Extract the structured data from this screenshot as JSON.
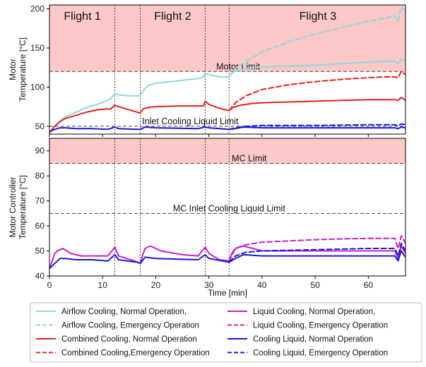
{
  "chart_data": {
    "type": "line",
    "xlabel": "Time [min]",
    "xlim": [
      0,
      67
    ],
    "xticks": [
      0,
      10,
      20,
      30,
      40,
      50,
      60
    ],
    "flight_boundaries": [
      12.3,
      17.1,
      29.3,
      33.8
    ],
    "flight_labels": [
      {
        "text": "Flight 1",
        "x": 6.2
      },
      {
        "text": "Flight 2",
        "x": 23.2
      },
      {
        "text": "Flight 3",
        "x": 50.5
      }
    ],
    "panels": [
      {
        "id": "motor",
        "ylabel_lines": [
          "Motor",
          "Temperature [°C]"
        ],
        "ylim": [
          40,
          205
        ],
        "yticks": [
          50,
          100,
          150,
          200
        ],
        "shade_from": 120,
        "limits": [
          {
            "label": "Motor Limit",
            "value": 120,
            "label_x": 35.5
          },
          {
            "label": "Inlet Cooling Liquid Limit",
            "value": 50,
            "label_x": 26.5
          }
        ],
        "series": [
          {
            "name": "Airflow Cooling, Normal Operation,",
            "color": "#8fd8dc",
            "dash": false,
            "x": [
              0,
              1,
              2,
              3,
              5,
              7,
              9,
              10.5,
              11.5,
              12.3,
              13,
              15,
              16.5,
              17.1,
              17.6,
              18.5,
              20,
              24,
              28,
              29,
              29.3,
              30,
              32,
              33.8,
              34.5,
              36,
              38,
              40,
              45,
              50,
              55,
              60,
              63,
              65,
              65.6,
              66.2,
              67
            ],
            "y": [
              42,
              50,
              57,
              62,
              68,
              74,
              78,
              82,
              85,
              92,
              90,
              89,
              89,
              89,
              95,
              102,
              105,
              108,
              111,
              113,
              118,
              116,
              113,
              113,
              119,
              122,
              125,
              126,
              127,
              128,
              130,
              132,
              133,
              133,
              130,
              136,
              133
            ]
          },
          {
            "name": "Airflow Cooling, Emergency Operation",
            "color": "#8fd8dc",
            "dash": true,
            "x": [
              33.8,
              35,
              37,
              40,
              45,
              50,
              55,
              60,
              63,
              65,
              65.6,
              66.2,
              67
            ],
            "y": [
              113,
              124,
              133,
              145,
              158,
              168,
              176,
              184,
              188,
              191,
              184,
              202,
              197
            ]
          },
          {
            "name": "Combined Cooling, Normal Operation",
            "color": "#e8201a",
            "dash": false,
            "x": [
              0,
              1,
              2,
              3,
              5,
              7,
              9,
              10.5,
              11.5,
              12.3,
              13,
              15,
              16.5,
              17.1,
              17.6,
              18.5,
              20,
              24,
              28,
              29,
              29.3,
              30,
              32,
              33.8,
              34.5,
              36,
              38,
              40,
              45,
              50,
              55,
              60,
              63,
              65,
              65.6,
              66.2,
              67
            ],
            "y": [
              42,
              50,
              56,
              60,
              64,
              68,
              71,
              72,
              72,
              77,
              75,
              71,
              68,
              67,
              72,
              74,
              75,
              76,
              76,
              76,
              82,
              78,
              73,
              70,
              74,
              77,
              79,
              80,
              81,
              82,
              83,
              84,
              84,
              84,
              83,
              87,
              83
            ]
          },
          {
            "name": "Combined Cooling,Emergency Operation",
            "color": "#e8201a",
            "dash": true,
            "x": [
              33.8,
              35,
              37,
              40,
              45,
              50,
              55,
              60,
              63,
              65,
              65.6,
              66.2,
              67
            ],
            "y": [
              70,
              80,
              89,
              97,
              103,
              107,
              110,
              112,
              113,
              113,
              112,
              120,
              116
            ]
          },
          {
            "name": "Cooling Liquid, Normal Operation",
            "color": "#1a1ad8",
            "dash": false,
            "x": [
              0,
              1,
              2,
              3,
              5,
              8,
              11,
              12.3,
              13,
              16.5,
              17.1,
              18,
              20,
              28,
              29.3,
              30,
              33.8,
              35,
              36.5,
              40,
              50,
              60,
              65,
              65.6,
              66.2,
              67
            ],
            "y": [
              43,
              46,
              48,
              48,
              47,
              47,
              46,
              49,
              47,
              46,
              46,
              49,
              48,
              47,
              49,
              48,
              46,
              47,
              49,
              48,
              48,
              48,
              48,
              47,
              49,
              48
            ]
          },
          {
            "name": "Cooling Liquid, Emergency Operation",
            "color": "#1a1ad8",
            "dash": true,
            "x": [
              33.8,
              35,
              37,
              40,
              50,
              60,
              65,
              65.6,
              66.2,
              67
            ],
            "y": [
              46,
              48,
              50,
              51,
              51,
              52,
              52,
              51,
              53,
              52
            ]
          }
        ]
      },
      {
        "id": "controller",
        "ylabel_lines": [
          "Motor Controller",
          "Temperature [°C]"
        ],
        "ylim": [
          40,
          95
        ],
        "yticks": [
          40,
          50,
          60,
          70,
          80,
          90
        ],
        "shade_from": 85,
        "limits": [
          {
            "label": "MC Limit",
            "value": 85,
            "label_x": 37.6
          },
          {
            "label": "MC Inlet Cooling Liquid Limit",
            "value": 65,
            "label_x": 33.8
          }
        ],
        "series": [
          {
            "name": "Liquid Cooling, Normal Operation,",
            "color": "#c71fc7",
            "dash": false,
            "x": [
              0,
              0.5,
              1,
              1.5,
              2.5,
              4,
              6,
              10,
              11,
              12.3,
              13,
              16,
              17.1,
              17.5,
              18,
              19,
              21,
              25,
              28,
              29.3,
              30,
              32,
              33.8,
              34.3,
              35,
              36.5,
              40,
              50,
              60,
              65,
              65.6,
              66.2,
              67
            ],
            "y": [
              43,
              46,
              49,
              50,
              51,
              49,
              48,
              48,
              48,
              51.5,
              48,
              46,
              45,
              48,
              51,
              52,
              50,
              48.5,
              48,
              51.5,
              49,
              46.5,
              46,
              49,
              51,
              52,
              50,
              50,
              50,
              50,
              47,
              52,
              49
            ]
          },
          {
            "name": "Liquid Cooling, Emergency Operation",
            "color": "#c71fc7",
            "dash": true,
            "x": [
              33.8,
              35,
              37,
              40,
              45,
              50,
              55,
              60,
              63,
              65,
              65.6,
              66.2,
              67
            ],
            "y": [
              46,
              51,
              52.5,
              53.5,
              54,
              54.5,
              54.8,
              55,
              55,
              55,
              51,
              56,
              53
            ]
          },
          {
            "name": "Cooling Liquid, Normal Operation",
            "color": "#1a1ad8",
            "dash": false,
            "x": [
              0,
              1,
              2,
              3,
              5,
              8,
              11,
              12.3,
              13,
              16.5,
              17.1,
              18,
              20,
              28,
              29.3,
              30,
              33.8,
              35,
              36.5,
              40,
              50,
              60,
              65,
              65.6,
              66.2,
              67
            ],
            "y": [
              43,
              45,
              47,
              47,
              46.5,
              46.5,
              46,
              48.5,
              46.5,
              45.5,
              45,
              47.5,
              47,
              46.5,
              48.5,
              47,
              45.5,
              47,
              48.5,
              48,
              48,
              48,
              48,
              46,
              50,
              47.5
            ]
          },
          {
            "name": "Cooling Liquid, Emergency Operation",
            "color": "#1a1ad8",
            "dash": true,
            "x": [
              33.8,
              35,
              37,
              40,
              50,
              60,
              65,
              65.6,
              66.2,
              67
            ],
            "y": [
              45.5,
              48,
              49.5,
              50,
              50.5,
              51,
              51,
              48,
              53,
              50
            ]
          }
        ]
      }
    ],
    "legend": [
      {
        "label": "Airflow Cooling, Normal Operation,",
        "color": "#8fd8dc",
        "dash": false
      },
      {
        "label": "Airflow Cooling, Emergency Operation",
        "color": "#8fd8dc",
        "dash": true
      },
      {
        "label": "Combined Cooling, Normal Operation",
        "color": "#e8201a",
        "dash": false
      },
      {
        "label": "Combined Cooling,Emergency Operation",
        "color": "#e8201a",
        "dash": true
      },
      {
        "label": "Liquid Cooling, Normal Operation,",
        "color": "#c71fc7",
        "dash": false
      },
      {
        "label": "Liquid Cooling, Emergency Operation",
        "color": "#c71fc7",
        "dash": true
      },
      {
        "label": "Cooling Liquid, Normal Operation",
        "color": "#1a1ad8",
        "dash": false
      },
      {
        "label": "Cooling Liquid, Emergency Operation",
        "color": "#1a1ad8",
        "dash": true
      }
    ],
    "colors": {
      "limit_shade": "#fcc8c8",
      "axis": "#000000"
    }
  }
}
